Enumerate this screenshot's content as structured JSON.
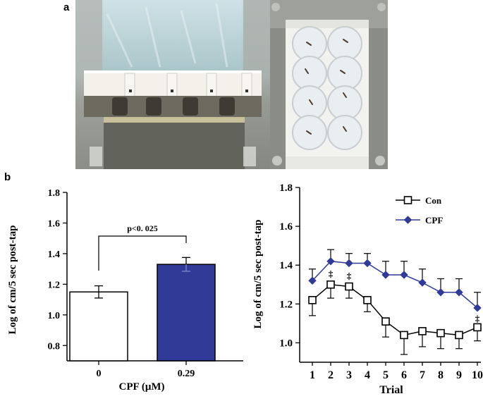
{
  "panels": {
    "a": "a",
    "b": "b"
  },
  "chart_data": [
    {
      "type": "bar",
      "ylabel": "Log of cm/5 sec post-tap",
      "xlabel": "CPF (μM)",
      "categories": [
        "0",
        "0.29"
      ],
      "values": [
        1.15,
        1.33
      ],
      "errors": [
        0.04,
        0.045
      ],
      "ylim": [
        0.7,
        1.8
      ],
      "yticks": [
        "0.8",
        "1.0",
        "1.2",
        "1.4",
        "1.6",
        "1.8"
      ],
      "colors": [
        "#ffffff",
        "#2f3b97"
      ],
      "annotation": "p<0. 025"
    },
    {
      "type": "line",
      "ylabel": "Log of cm/5 sec post-tap",
      "xlabel": "Trial",
      "x": [
        "1",
        "2",
        "3",
        "4",
        "5",
        "6",
        "7",
        "8",
        "9",
        "10"
      ],
      "ylim": [
        0.9,
        1.8
      ],
      "yticks": [
        "1.0",
        "1.2",
        "1.4",
        "1.6",
        "1.8"
      ],
      "legend_position": "top-right",
      "series": [
        {
          "name": "Con",
          "marker": "open-square",
          "color": "#000000",
          "values": [
            1.22,
            1.3,
            1.29,
            1.22,
            1.11,
            1.04,
            1.06,
            1.05,
            1.04,
            1.08
          ],
          "errors": [
            0.08,
            0.07,
            0.06,
            0.06,
            0.08,
            0.1,
            0.08,
            0.08,
            0.07,
            0.07
          ]
        },
        {
          "name": "CPF",
          "marker": "filled-diamond",
          "color": "#2f3b97",
          "values": [
            1.32,
            1.42,
            1.41,
            1.41,
            1.35,
            1.35,
            1.31,
            1.26,
            1.26,
            1.18
          ],
          "errors": [
            0.06,
            0.06,
            0.05,
            0.05,
            0.07,
            0.07,
            0.07,
            0.07,
            0.07,
            0.08
          ]
        }
      ],
      "annotations": [
        {
          "x": "2",
          "text": "‡"
        },
        {
          "x": "3",
          "text": "‡"
        },
        {
          "x": "10",
          "text": "‡"
        }
      ]
    }
  ]
}
